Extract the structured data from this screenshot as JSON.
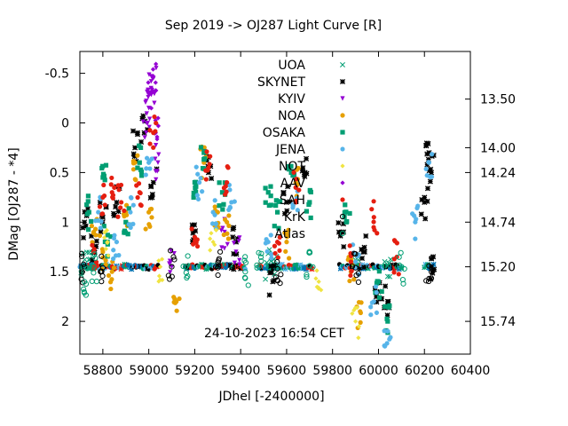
{
  "chart_data": {
    "type": "scatter",
    "title": "Sep 2019 ->   OJ287 Light Curve [R]",
    "xlabel": "JDhel [-2400000]",
    "ylabel": "DMag [OJ287 - *4]",
    "xlim": [
      58700,
      60400
    ],
    "ylim": [
      2.33,
      -0.72
    ],
    "y_inverted": true,
    "grid": false,
    "legend_position": "top-center",
    "timestamp": "24-10-2023  16:54 CET",
    "x_ticks": [
      "58800",
      "59000",
      "59200",
      "59400",
      "59600",
      "59800",
      "60000",
      "60200",
      "60400"
    ],
    "x_tick_values": [
      58800,
      59000,
      59200,
      59400,
      59600,
      59800,
      60000,
      60200,
      60400
    ],
    "y_ticks": [
      "-0.5",
      "0",
      "0.5",
      "1",
      "1.5",
      "2"
    ],
    "y_tick_values": [
      -0.5,
      0,
      0.5,
      1,
      1.5,
      2
    ],
    "y2_ticks": [
      "13.50",
      "14.00",
      "14.24",
      "14.74",
      "15.20",
      "15.74"
    ],
    "y2_tick_dmag": [
      -0.24,
      0.25,
      0.5,
      1.0,
      1.45,
      2.0
    ],
    "series": [
      {
        "name": "UOA",
        "color": "#009e73",
        "marker": "x",
        "points": [
          [
            58720,
            1.43
          ],
          [
            58740,
            1.45
          ],
          [
            58760,
            1.44
          ],
          [
            59520,
            1.44
          ],
          [
            59560,
            1.45
          ],
          [
            59900,
            1.44
          ],
          [
            60040,
            1.44
          ]
        ]
      },
      {
        "name": "SKYNET",
        "color": "#000000",
        "marker": "asterisk",
        "points": [
          [
            58720,
            1.0
          ],
          [
            58760,
            1.3
          ],
          [
            58800,
            0.95
          ],
          [
            58860,
            0.8
          ],
          [
            58940,
            0.25
          ],
          [
            58980,
            0.1
          ],
          [
            59020,
            0.6
          ],
          [
            59200,
            1.2
          ],
          [
            59260,
            0.5
          ],
          [
            59380,
            1.2
          ],
          [
            59540,
            1.6
          ],
          [
            59600,
            0.8
          ],
          [
            59680,
            0.5
          ],
          [
            59840,
            1.1
          ],
          [
            59940,
            1.3
          ],
          [
            60000,
            1.7
          ],
          [
            60040,
            1.8
          ],
          [
            60200,
            0.8
          ],
          [
            60220,
            0.3
          ],
          [
            60230,
            0.5
          ],
          [
            60230,
            1.45
          ]
        ]
      },
      {
        "name": "KYIV",
        "color": "#9400d3",
        "marker": "triangle-down",
        "points": [
          [
            58990,
            0.0
          ],
          [
            59000,
            -0.15
          ],
          [
            59010,
            -0.35
          ],
          [
            59020,
            -0.45
          ],
          [
            59040,
            0.4
          ],
          [
            59100,
            1.45
          ],
          [
            59330,
            1.1
          ],
          [
            59380,
            1.3
          ]
        ]
      },
      {
        "name": "NOA",
        "color": "#e6a000",
        "marker": "circle",
        "points": [
          [
            58760,
            1.1
          ],
          [
            58800,
            1.3
          ],
          [
            58840,
            1.5
          ],
          [
            58900,
            0.9
          ],
          [
            58940,
            0.4
          ],
          [
            59000,
            0.9
          ],
          [
            59120,
            1.8
          ],
          [
            59240,
            0.4
          ],
          [
            59300,
            0.9
          ],
          [
            59340,
            1.0
          ],
          [
            59600,
            1.2
          ],
          [
            59640,
            0.6
          ],
          [
            59880,
            1.5
          ],
          [
            59920,
            1.9
          ]
        ]
      },
      {
        "name": "OSAKA",
        "color": "#009e73",
        "marker": "square",
        "points": [
          [
            58740,
            0.9
          ],
          [
            58800,
            0.55
          ],
          [
            58820,
            1.2
          ],
          [
            58900,
            1.0
          ],
          [
            58960,
            0.4
          ],
          [
            59200,
            0.6
          ],
          [
            59240,
            0.3
          ],
          [
            59320,
            0.7
          ],
          [
            59520,
            0.7
          ],
          [
            59560,
            0.9
          ],
          [
            59620,
            0.5
          ],
          [
            59700,
            0.8
          ],
          [
            59860,
            1.0
          ],
          [
            60000,
            1.6
          ],
          [
            60040,
            2.0
          ]
        ]
      },
      {
        "name": "JENA",
        "color": "#56b4e9",
        "marker": "star",
        "points": [
          [
            58780,
            0.9
          ],
          [
            58860,
            1.2
          ],
          [
            58920,
            0.9
          ],
          [
            59000,
            0.4
          ],
          [
            59220,
            0.6
          ],
          [
            59280,
            0.9
          ],
          [
            59360,
            0.8
          ],
          [
            59520,
            1.2
          ],
          [
            59640,
            0.8
          ],
          [
            59900,
            1.4
          ],
          [
            59980,
            1.8
          ],
          [
            60040,
            2.1
          ],
          [
            60160,
            1.0
          ],
          [
            60220,
            0.4
          ]
        ]
      },
      {
        "name": "NOT",
        "color": "#f0e442",
        "marker": "diamond",
        "points": [
          [
            58820,
            1.2
          ],
          [
            59050,
            1.45
          ],
          [
            59280,
            1.2
          ],
          [
            59740,
            1.6
          ],
          [
            59900,
            2.0
          ]
        ]
      },
      {
        "name": "AAV",
        "color": "#9400d3",
        "marker": "diamond",
        "points": [
          [
            59010,
            -0.3
          ],
          [
            59020,
            -0.47
          ],
          [
            59030,
            0.1
          ]
        ]
      },
      {
        "name": "SAH",
        "color": "#e51e10",
        "marker": "circle",
        "points": [
          [
            58760,
            1.3
          ],
          [
            58800,
            0.75
          ],
          [
            58840,
            0.7
          ],
          [
            58880,
            0.8
          ],
          [
            58960,
            0.7
          ],
          [
            59020,
            0.1
          ],
          [
            59200,
            1.15
          ],
          [
            59260,
            0.45
          ],
          [
            59340,
            0.6
          ],
          [
            59560,
            1.2
          ],
          [
            59640,
            0.65
          ],
          [
            59880,
            1.4
          ],
          [
            59980,
            0.95
          ],
          [
            60080,
            1.35
          ]
        ]
      },
      {
        "name": "KrK",
        "color": "#000000",
        "marker": "circle-open",
        "points": [
          [
            58720,
            1.45
          ],
          [
            58800,
            1.46
          ],
          [
            59100,
            1.45
          ],
          [
            59300,
            1.46
          ],
          [
            59560,
            1.47
          ],
          [
            59900,
            1.46
          ],
          [
            60220,
            1.44
          ]
        ]
      },
      {
        "name": "Atlas",
        "color": "#009e73",
        "marker": "circle-open",
        "points": [
          [
            58720,
            1.6
          ],
          [
            58760,
            1.45
          ],
          [
            59160,
            1.45
          ],
          [
            59420,
            1.5
          ],
          [
            59480,
            1.45
          ],
          [
            59700,
            1.44
          ],
          [
            60100,
            1.45
          ]
        ]
      }
    ],
    "flat_band": {
      "dmag": 1.45,
      "x_ranges": [
        [
          58700,
          59040
        ],
        [
          59160,
          59420
        ],
        [
          59480,
          59710
        ],
        [
          59830,
          60100
        ],
        [
          60200,
          60240
        ]
      ]
    }
  }
}
